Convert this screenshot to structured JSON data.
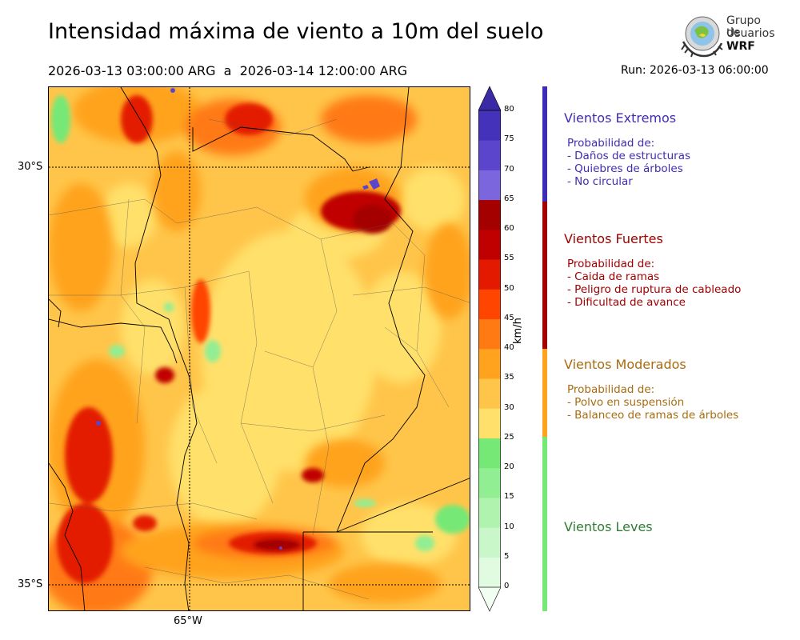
{
  "header": {
    "title": "Intensidad máxima de viento a 10m del suelo",
    "period": "2026-03-13 03:00:00 ARG  a  2026-03-14 12:00:00 ARG",
    "run": "Run: 2026-03-13 06:00:00"
  },
  "logo": {
    "line1": "Grupo de",
    "line2": "Usuarios",
    "line3": "WRF"
  },
  "map": {
    "lat_labels": [
      "30°S",
      "35°S"
    ],
    "lon_labels": [
      "65°W"
    ],
    "colors": {
      "border": "#000000",
      "graticule": "#000000"
    }
  },
  "colorbar": {
    "unit": "km/h",
    "ticks": [
      "0",
      "5",
      "10",
      "15",
      "20",
      "25",
      "30",
      "35",
      "40",
      "45",
      "50",
      "55",
      "60",
      "65",
      "70",
      "75",
      "80"
    ],
    "colors": [
      "#f2fef2",
      "#e1fbe1",
      "#c9f7c9",
      "#aff3af",
      "#92ee92",
      "#76e876",
      "#ffe06a",
      "#ffc54a",
      "#ffa31f",
      "#ff7a12",
      "#ff4500",
      "#e31a00",
      "#c00000",
      "#a40000",
      "#7b66dd",
      "#5a45cc",
      "#4432bb",
      "#3b2aa6"
    ]
  },
  "categories": [
    {
      "name": "Vientos Extremos",
      "color": "#3f2cb5",
      "lines": [
        "Probabilidad de:",
        "- Daños de estructuras",
        "- Quiebres de árboles",
        "- No circular"
      ]
    },
    {
      "name": "Vientos Fuertes",
      "color": "#a00000",
      "lines": [
        "Probabilidad de:",
        "- Caida de ramas",
        "- Peligro de ruptura de cableado",
        "- Dificultad de avance"
      ]
    },
    {
      "name": "Vientos Moderados",
      "color": "#a86c10",
      "lines": [
        "Probabilidad de:",
        "- Polvo en suspensión",
        "- Balanceo de ramas de árboles"
      ]
    },
    {
      "name": "Vientos Leves",
      "color": "#2e7d32",
      "lines": []
    }
  ]
}
